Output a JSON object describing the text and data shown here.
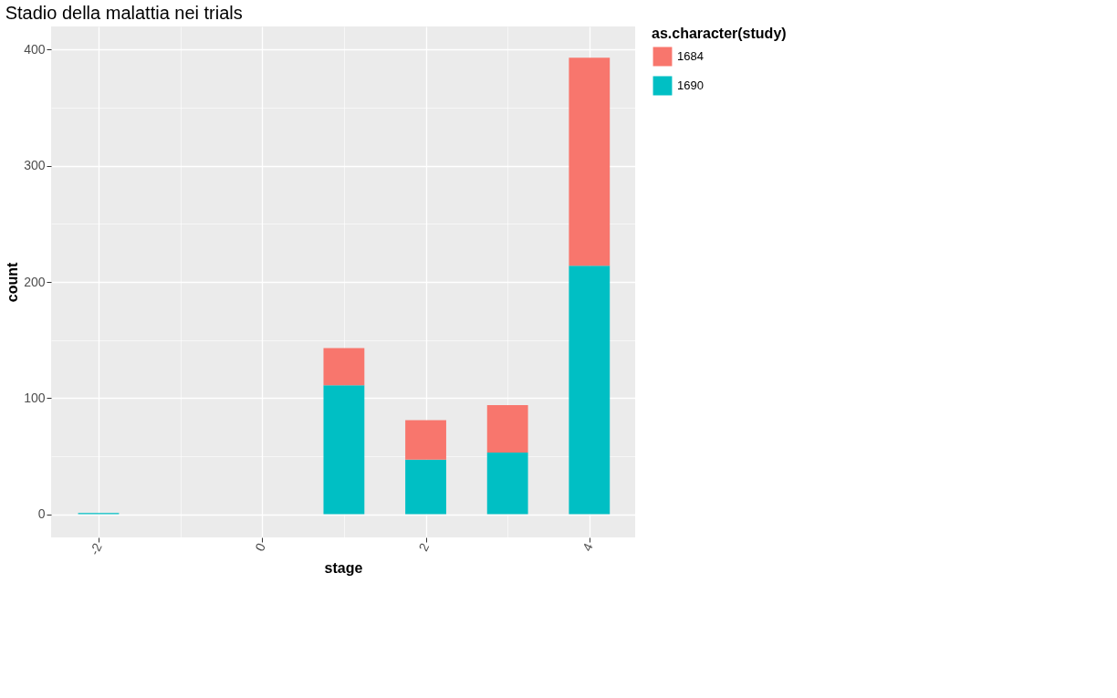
{
  "chart_data": {
    "type": "bar",
    "title": "Stadio della malattia nei trials",
    "xlabel": "stage",
    "ylabel": "count",
    "legend_title": "as.character(study)",
    "x": [
      -2,
      1,
      2,
      3,
      4
    ],
    "stacked": true,
    "series": [
      {
        "name": "1690",
        "color": "#00bfc4",
        "values": [
          1,
          111,
          47,
          53,
          214
        ]
      },
      {
        "name": "1684",
        "color": "#f8766d",
        "values": [
          0,
          32,
          34,
          41,
          179
        ]
      }
    ],
    "xlim": [
      -2.58,
      4.56
    ],
    "ylim": [
      -20,
      420
    ],
    "xticks": [
      -2,
      {
        "value": -1,
        "label": null
      },
      0,
      {
        "value": 1,
        "label": null
      },
      2,
      {
        "value": 3,
        "label": null
      },
      4
    ],
    "yticks": [
      0,
      {
        "value": 50,
        "label": null
      },
      100,
      {
        "value": 150,
        "label": null
      },
      200,
      {
        "value": 250,
        "label": null
      },
      300,
      {
        "value": 350,
        "label": null
      },
      400
    ],
    "grid": true,
    "legend": "right"
  }
}
